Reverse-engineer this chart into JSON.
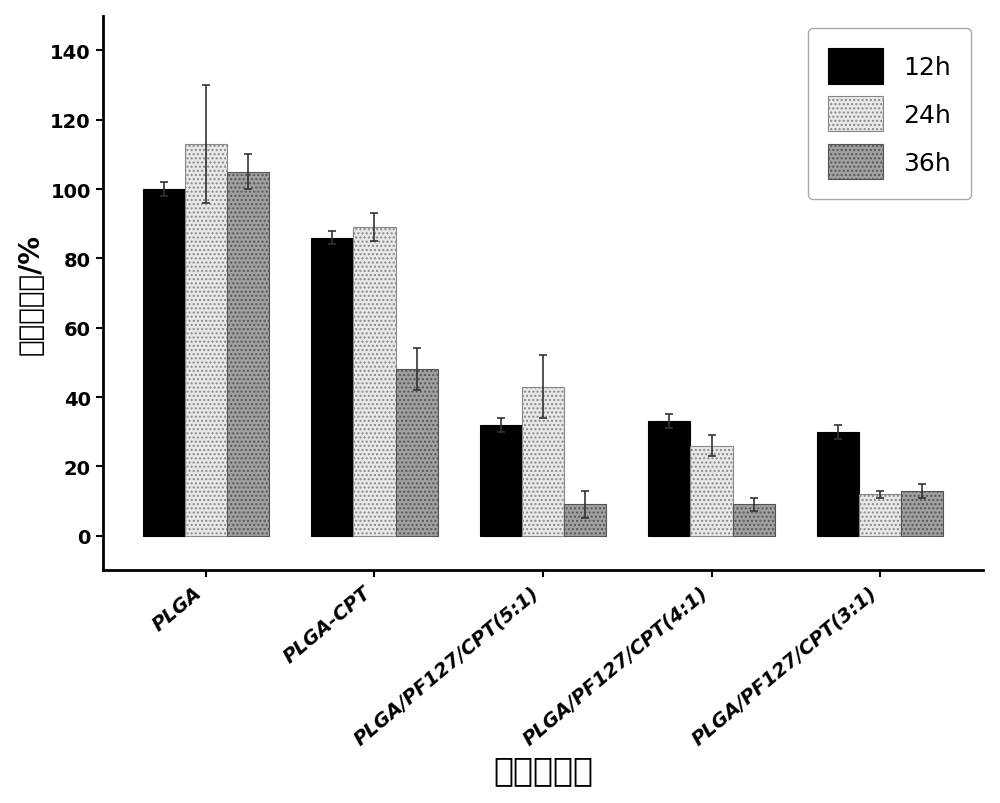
{
  "categories": [
    "PLGA",
    "PLGA-CPT",
    "PLGA/PF127/CPT(5:1)",
    "PLGA/PF127/CPT(4:1)",
    "PLGA/PF127/CPT(3:1)"
  ],
  "series": {
    "12h": [
      100,
      86,
      32,
      33,
      30
    ],
    "24h": [
      113,
      89,
      43,
      26,
      12
    ],
    "36h": [
      105,
      48,
      9,
      9,
      13
    ]
  },
  "errors": {
    "12h": [
      2,
      2,
      2,
      2,
      2
    ],
    "24h": [
      17,
      4,
      9,
      3,
      1
    ],
    "36h": [
      5,
      6,
      4,
      2,
      2
    ]
  },
  "colors": {
    "12h": "#000000",
    "24h": "#e8e8e8",
    "36h": "#a0a0a0"
  },
  "hatches": {
    "12h": "",
    "24h": "....",
    "36h": "...."
  },
  "edgecolors": {
    "12h": "#000000",
    "24h": "#888888",
    "36h": "#555555"
  },
  "ylabel": "细胞存活率/%",
  "xlabel": "电纺纤维膜",
  "ylim": [
    -10,
    150
  ],
  "yticks": [
    0,
    20,
    40,
    60,
    80,
    100,
    120,
    140
  ],
  "legend_labels": [
    "12h",
    "24h",
    "36h"
  ],
  "bar_width": 0.25,
  "axis_fontsize": 20,
  "tick_fontsize": 14,
  "legend_fontsize": 18,
  "background_color": "#ffffff"
}
